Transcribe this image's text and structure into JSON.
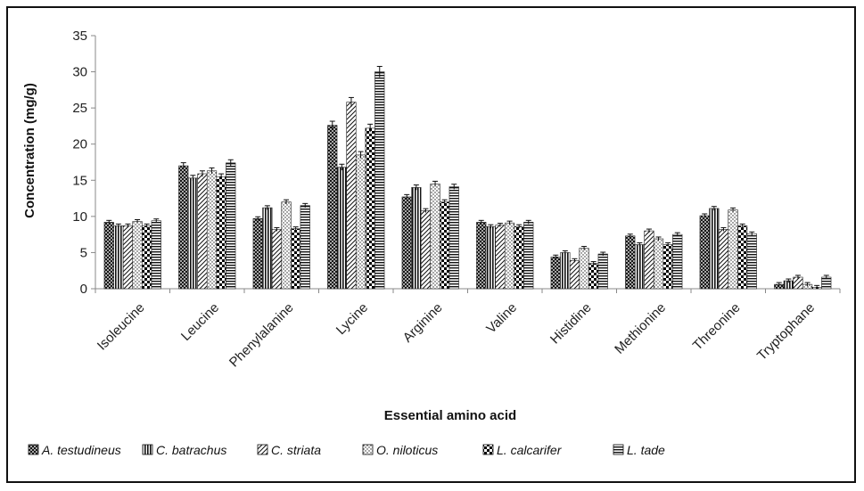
{
  "chart_data": {
    "type": "bar",
    "title": "",
    "xlabel": "Essential amino acid",
    "ylabel": "Concentration (mg/g)",
    "ylim": [
      0,
      35
    ],
    "yticks": [
      0,
      5,
      10,
      15,
      20,
      25,
      30,
      35
    ],
    "legend_position": "bottom",
    "grid": false,
    "categories": [
      "Isoleucine",
      "Leucine",
      "Phenylalanine",
      "Lycine",
      "Arginine",
      "Valine",
      "Histidine",
      "Methionine",
      "Threonine",
      "Tryptophane"
    ],
    "series": [
      {
        "name": "A. testudineus",
        "pattern": "crosshatch",
        "values": [
          9.2,
          17.0,
          9.7,
          22.6,
          12.7,
          9.2,
          4.4,
          7.3,
          10.1,
          0.6
        ]
      },
      {
        "name": "C. batrachus",
        "pattern": "vertical",
        "values": [
          8.7,
          15.3,
          11.2,
          16.8,
          14.0,
          8.6,
          5.0,
          6.1,
          11.1,
          1.1
        ]
      },
      {
        "name": "C. striata",
        "pattern": "diagonal",
        "values": [
          8.7,
          15.9,
          8.2,
          25.8,
          10.8,
          8.8,
          3.9,
          8.0,
          8.2,
          1.6
        ]
      },
      {
        "name": "O. niloticus",
        "pattern": "dots",
        "values": [
          9.3,
          16.3,
          12.0,
          18.5,
          14.5,
          9.1,
          5.6,
          6.9,
          10.9,
          0.6
        ]
      },
      {
        "name": "L. calcarifer",
        "pattern": "checker",
        "values": [
          8.7,
          15.5,
          8.3,
          22.2,
          12.0,
          8.6,
          3.5,
          6.1,
          8.7,
          0.2
        ]
      },
      {
        "name": "L. tade",
        "pattern": "horizontal",
        "values": [
          9.4,
          17.4,
          11.5,
          30.0,
          14.1,
          9.2,
          4.8,
          7.5,
          7.6,
          1.6
        ]
      }
    ]
  }
}
